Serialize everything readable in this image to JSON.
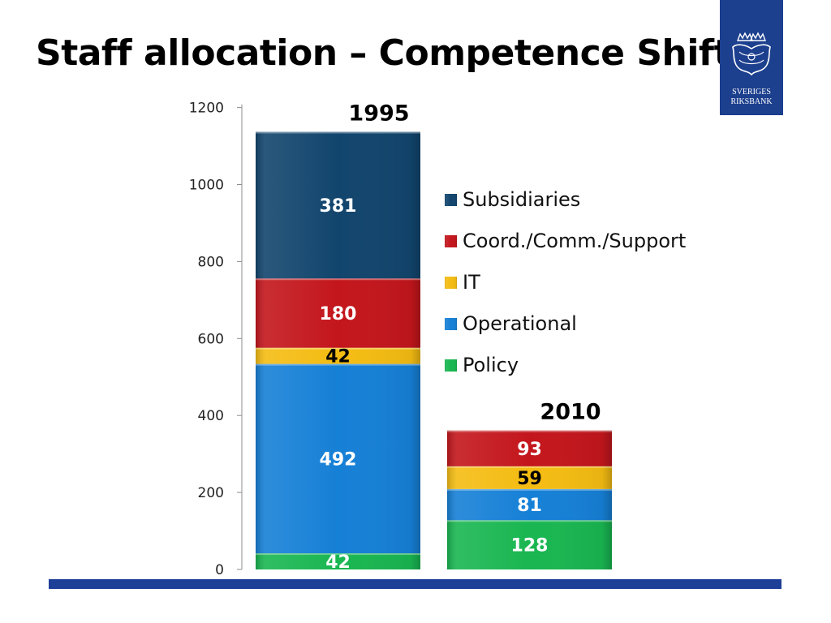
{
  "slide": {
    "title": "Staff allocation – Competence Shift"
  },
  "logo": {
    "line1": "SVERIGES",
    "line2": "RIKSBANK"
  },
  "colors": {
    "Subsidiaries": "#12456d",
    "Coord./Comm./Support": "#c3161c",
    "IT": "#f4bc12",
    "Operational": "#1680d6",
    "Policy": "#19b651",
    "bottom_bar": "#1d3f97"
  },
  "chart_data": {
    "type": "bar",
    "stacked": true,
    "categories": [
      "1995",
      "2010"
    ],
    "series": [
      {
        "name": "Policy",
        "values": [
          42,
          128
        ]
      },
      {
        "name": "Operational",
        "values": [
          492,
          81
        ]
      },
      {
        "name": "IT",
        "values": [
          42,
          59
        ]
      },
      {
        "name": "Coord./Comm./Support",
        "values": [
          180,
          93
        ]
      },
      {
        "name": "Subsidiaries",
        "values": [
          381,
          0
        ]
      }
    ],
    "legend_order": [
      "Subsidiaries",
      "Coord./Comm./Support",
      "IT",
      "Operational",
      "Policy"
    ],
    "y_ticks": [
      0,
      200,
      400,
      600,
      800,
      1000,
      1200
    ],
    "ylim": [
      0,
      1200
    ],
    "title": "",
    "xlabel": "",
    "ylabel": "",
    "grid": false,
    "legend_position": "right"
  }
}
